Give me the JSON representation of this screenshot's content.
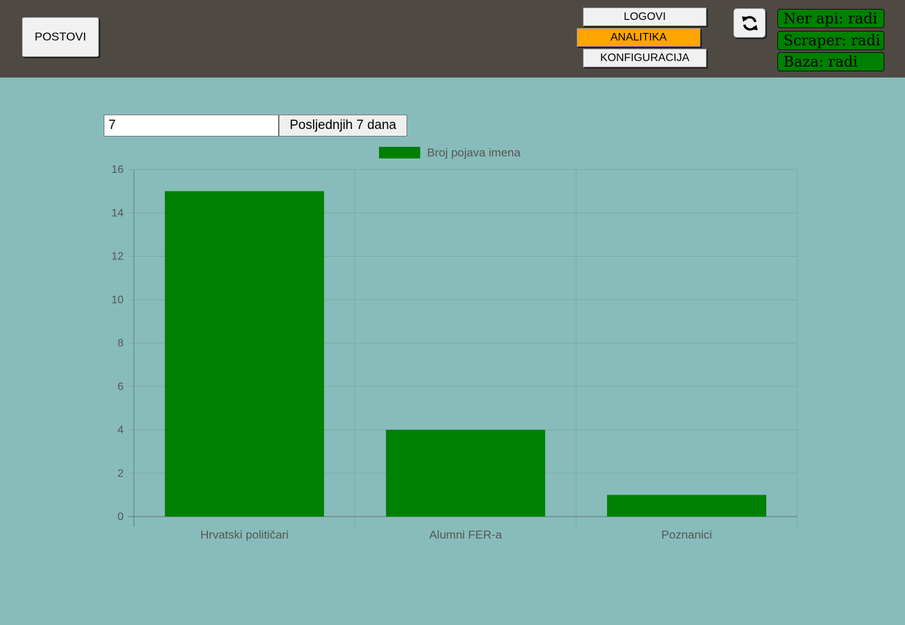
{
  "header": {
    "posts_label": "POSTOVI",
    "nav": {
      "logs": "LOGOVI",
      "analytics": "ANALITIKA",
      "config": "KONFIGURACIJA"
    },
    "refresh_icon": "refresh-icon",
    "status": {
      "ner": "Ner api: radi",
      "scraper": "Scraper: radi",
      "db": "Baza: radi"
    }
  },
  "controls": {
    "days_value": "7",
    "days_button": "Posljednjih 7 dana"
  },
  "colors": {
    "accent": "#ffa500",
    "status_ok": "#008000",
    "bar": "#008000",
    "background": "#88bcba",
    "topbar": "#4e4943"
  },
  "chart_data": {
    "type": "bar",
    "categories": [
      "Hrvatski političari",
      "Alumni FER-a",
      "Poznanici"
    ],
    "series": [
      {
        "name": "Broj pojava imena",
        "values": [
          15,
          4,
          1
        ]
      }
    ],
    "yticks": [
      "0",
      "2",
      "4",
      "6",
      "8",
      "10",
      "12",
      "14",
      "16"
    ],
    "ylim": [
      0,
      16
    ],
    "grid": true,
    "legend": "top"
  }
}
